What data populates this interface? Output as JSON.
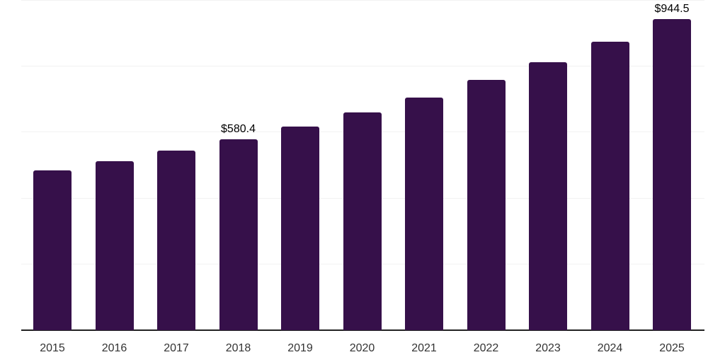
{
  "chart_data": {
    "type": "bar",
    "title": "",
    "xlabel": "",
    "ylabel": "",
    "categories": [
      "2015",
      "2016",
      "2017",
      "2018",
      "2019",
      "2020",
      "2021",
      "2022",
      "2023",
      "2024",
      "2025"
    ],
    "values": [
      486,
      513,
      545,
      580.4,
      618,
      661,
      707,
      759,
      814,
      875,
      944.5
    ],
    "labeled_values": {
      "2018": "$580.4",
      "2025": "$944.5"
    },
    "ylim": [
      0,
      1000
    ],
    "gridline_step": 200,
    "grid": true,
    "legend": false,
    "y_tick_labels_visible": false
  },
  "colors": {
    "bar": "#36104A",
    "axis": "#222222",
    "gridline": "#f2f2f2",
    "tick_label": "#333333",
    "data_label": "#000000",
    "background": "#ffffff"
  }
}
